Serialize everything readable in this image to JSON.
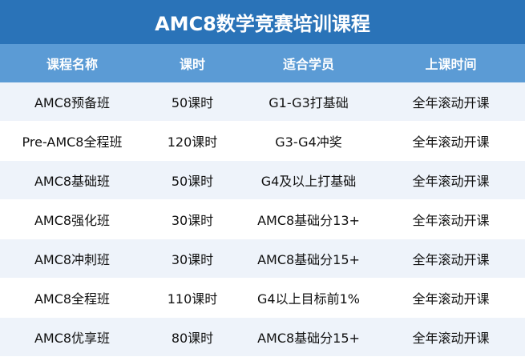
{
  "header": {
    "title": "AMC8数学竞赛培训课程"
  },
  "table": {
    "columns": [
      "课程名称",
      "课时",
      "适合学员",
      "上课时间"
    ],
    "rows": [
      [
        "AMC8预备班",
        "50课时",
        "G1-G3打基础",
        "全年滚动开课"
      ],
      [
        "Pre-AMC8全程班",
        "120课时",
        "G3-G4冲奖",
        "全年滚动开课"
      ],
      [
        "AMC8基础班",
        "50课时",
        "G4及以上打基础",
        "全年滚动开课"
      ],
      [
        "AMC8强化班",
        "30课时",
        "AMC8基础分13+",
        "全年滚动开课"
      ],
      [
        "AMC8冲刺班",
        "30课时",
        "AMC8基础分15+",
        "全年滚动开课"
      ],
      [
        "AMC8全程班",
        "110课时",
        "G4以上目标前1%",
        "全年滚动开课"
      ],
      [
        "AMC8优享班",
        "80课时",
        "AMC8基础分15+",
        "全年滚动开课"
      ]
    ]
  }
}
